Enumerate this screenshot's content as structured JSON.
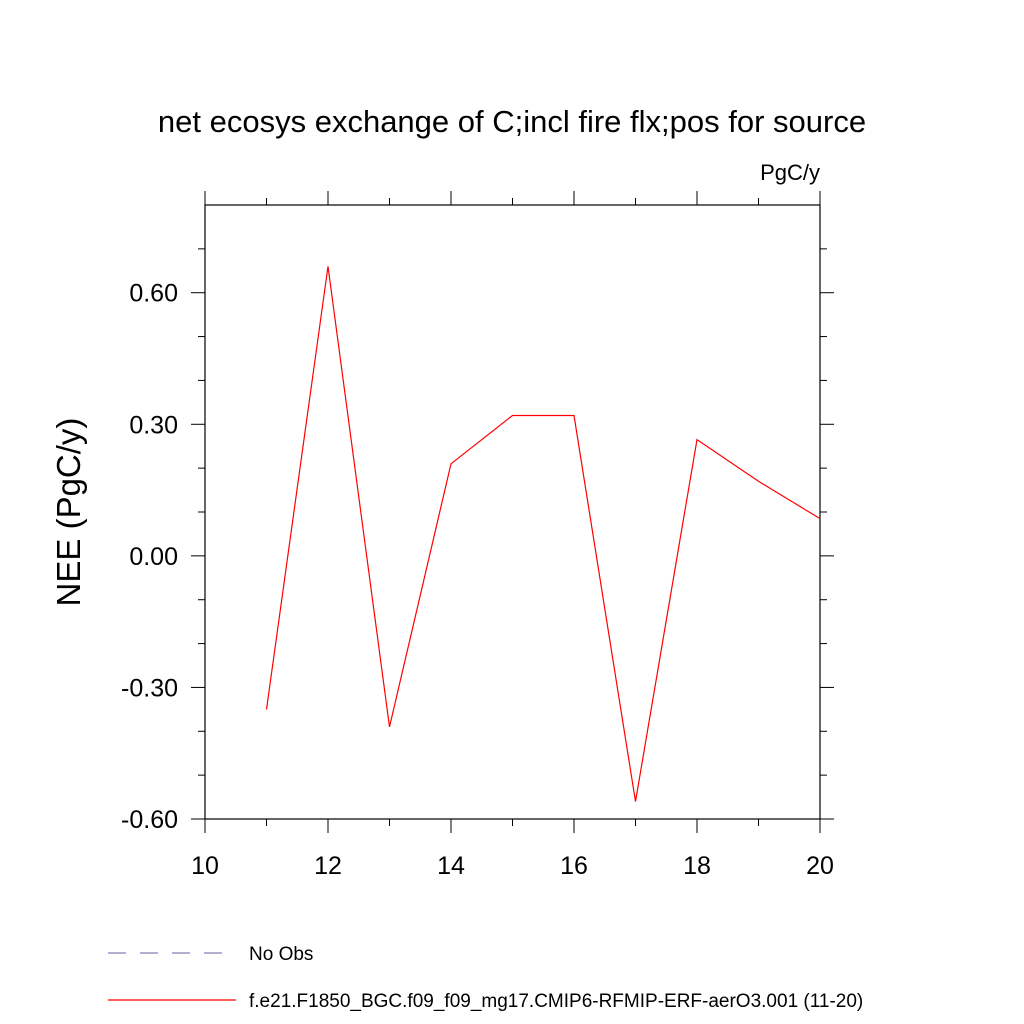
{
  "chart_data": {
    "type": "line",
    "title": "net ecosys exchange of C;incl fire flx;pos for source",
    "units_label": "PgC/y",
    "ylabel": "NEE  (PgC/y)",
    "xlabel": "",
    "xlim": [
      10,
      20
    ],
    "ylim": [
      -0.6,
      0.8
    ],
    "x_ticks": [
      10,
      12,
      14,
      16,
      18,
      20
    ],
    "x_tick_labels": [
      "10",
      "12",
      "14",
      "16",
      "18",
      "20"
    ],
    "y_ticks": [
      -0.6,
      -0.3,
      0.0,
      0.3,
      0.6
    ],
    "y_tick_labels": [
      "-0.60",
      "-0.30",
      "0.00",
      "0.30",
      "0.60"
    ],
    "grid": false,
    "legend_position": "bottom",
    "series": [
      {
        "name": "f.e21.F1850_BGC.f09_f09_mg17.CMIP6-RFMIP-ERF-aerO3.001 (11-20)",
        "color": "#ff0000",
        "style": "solid",
        "x": [
          11,
          12,
          13,
          14,
          15,
          16,
          17,
          18,
          19,
          20
        ],
        "y": [
          -0.35,
          0.66,
          -0.39,
          0.21,
          0.32,
          0.32,
          -0.56,
          0.265,
          0.17,
          0.085
        ]
      }
    ],
    "legend": [
      {
        "label": "No Obs",
        "color": "#8a7fb8",
        "style": "dashed"
      },
      {
        "label": "f.e21.F1850_BGC.f09_f09_mg17.CMIP6-RFMIP-ERF-aerO3.001 (11-20)",
        "color": "#ff0000",
        "style": "solid"
      }
    ]
  }
}
